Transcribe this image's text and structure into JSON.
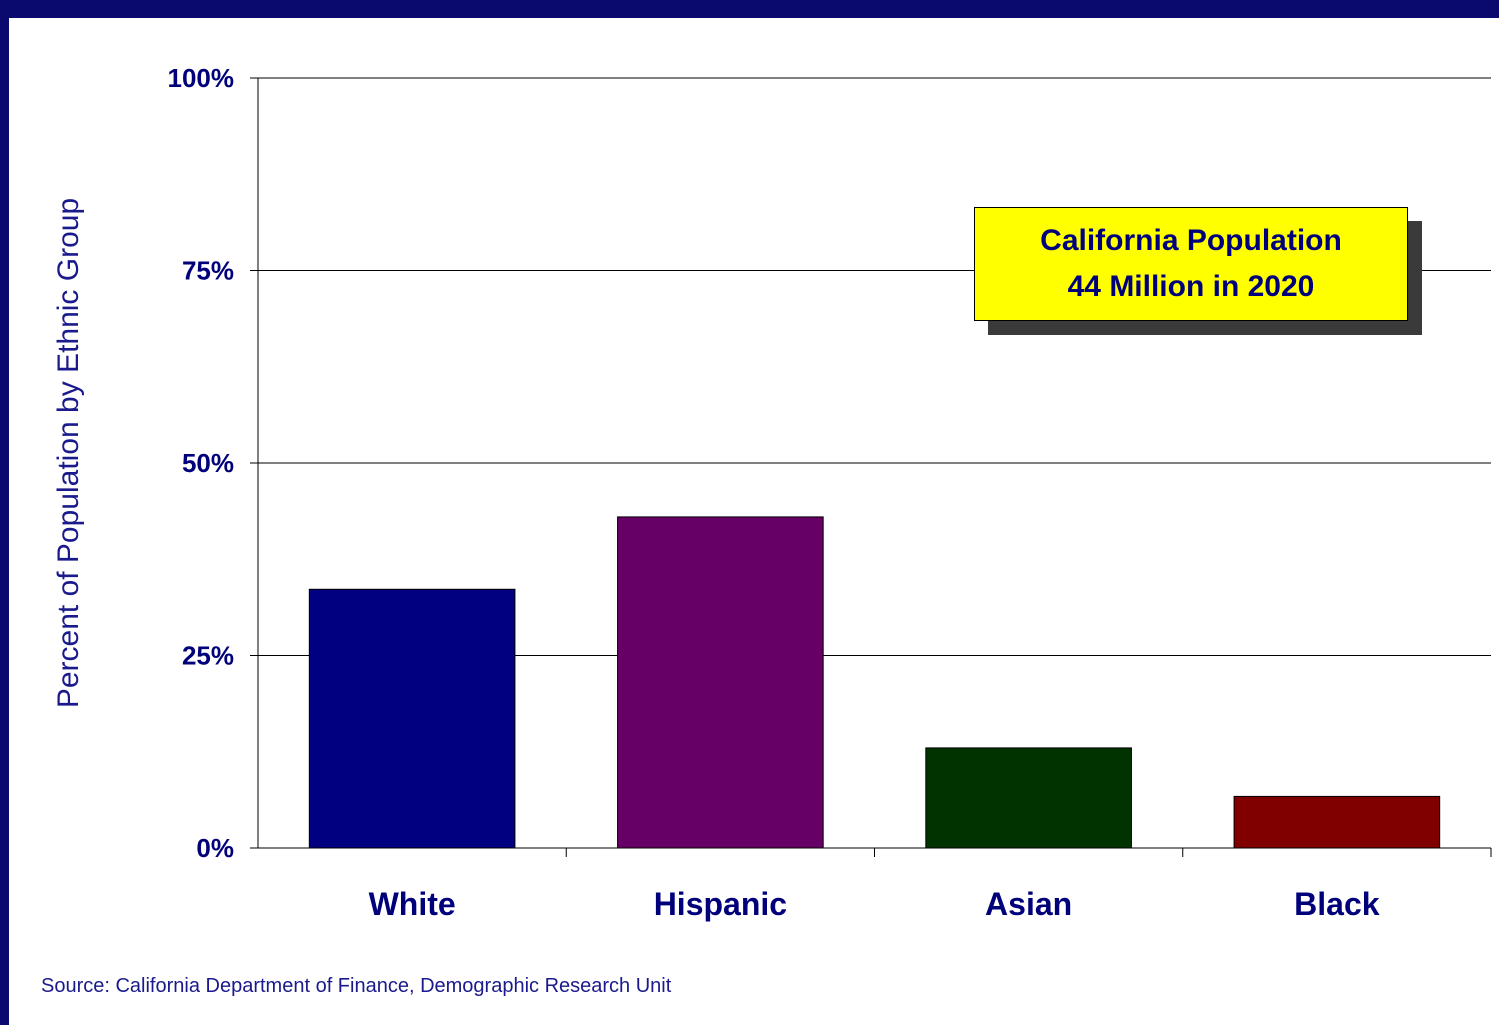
{
  "callout": {
    "line1": "California Population",
    "line2": "44 Million in 2020"
  },
  "source": "Source: California Department of Finance, Demographic Research Unit",
  "colors": {
    "frame": "#0a0a6e",
    "text": "#00007a",
    "callout_bg": "#ffff00"
  },
  "chart_data": {
    "type": "bar",
    "categories": [
      "White",
      "Hispanic",
      "Asian",
      "Black"
    ],
    "values": [
      33.6,
      43.0,
      13.0,
      6.7
    ],
    "bar_colors": [
      "#000080",
      "#660066",
      "#003300",
      "#800000"
    ],
    "ylabel": "Percent of Population by Ethnic Group",
    "xlabel": "",
    "ylim": [
      0,
      100
    ],
    "yticks": [
      0,
      25,
      50,
      75,
      100
    ],
    "ytick_labels": [
      "0%",
      "25%",
      "50%",
      "75%",
      "100%"
    ],
    "grid": true
  }
}
